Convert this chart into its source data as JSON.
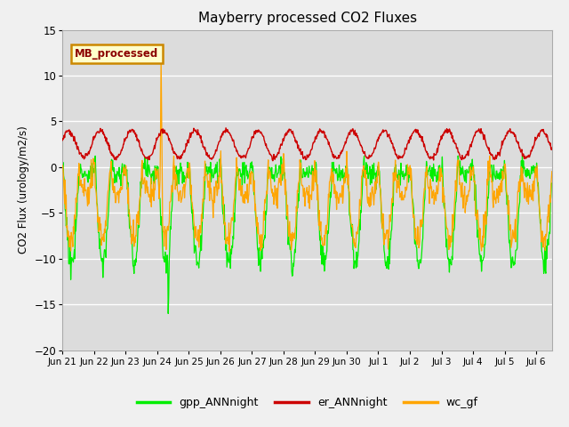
{
  "title": "Mayberry processed CO2 Fluxes",
  "ylabel": "CO2 Flux (urology/m2/s)",
  "ylim": [
    -20,
    15
  ],
  "yticks": [
    -20,
    -15,
    -10,
    -5,
    0,
    5,
    10,
    15
  ],
  "xlim_start": 0,
  "xlim_end": 15.5,
  "bg_color": "#dcdcdc",
  "color_gpp": "#00ee00",
  "color_er": "#cc0000",
  "color_wc": "#ffa500",
  "legend_box_text": "MB_processed",
  "legend_box_facecolor": "#ffffcc",
  "legend_box_edgecolor": "#cc8800",
  "legend_box_textcolor": "#8b0000",
  "legend_labels": [
    "gpp_ANNnight",
    "er_ANNnight",
    "wc_gf"
  ],
  "tick_positions": [
    0,
    1,
    2,
    3,
    4,
    5,
    6,
    7,
    8,
    9,
    10,
    11,
    12,
    13,
    14,
    15
  ],
  "tick_labels": [
    "Jun 21",
    "Jun 22",
    "Jun 23",
    "Jun 24",
    "Jun 25",
    "Jun 26",
    "Jun 27",
    "Jun 28",
    "Jun 29",
    "Jun 30",
    "Jul 1",
    "Jul 2",
    "Jul 3",
    "Jul 4",
    "Jul 5",
    "Jul 6"
  ],
  "n_points": 960,
  "total_days": 15.5,
  "noise_scale_gpp": 0.6,
  "noise_scale_wc": 0.7,
  "noise_scale_er": 0.15,
  "gpp_day_amp": 10.5,
  "gpp_night_amp": 0.8,
  "wc_day_amp": 8.0,
  "wc_night_amp": 3.2,
  "er_base": 2.5,
  "er_amp": 1.5,
  "spike_wc_day": 3.12,
  "spike_wc_val": 12.0,
  "spike_gpp_day": 3.35,
  "spike_gpp_val": -16.0
}
